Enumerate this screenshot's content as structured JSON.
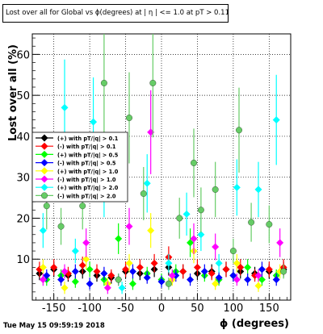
{
  "title": "Lost over all for Global vs ϕ(degrees) at | η | <= 1.0 at pT > 0.11",
  "timestamp": "Tue May 15 09:59:19 2018",
  "chart_data": {
    "type": "scatter",
    "xlabel": "ϕ (degrees)",
    "ylabel": "Lost over all (%)",
    "xlim": [
      -180,
      180
    ],
    "ylim": [
      0,
      65
    ],
    "x_ticks": [
      -150,
      -100,
      -50,
      0,
      50,
      100,
      150
    ],
    "y_ticks": [
      10,
      20,
      30,
      40,
      50,
      60
    ],
    "grid": true,
    "legend_position": "middle-left",
    "series": [
      {
        "name": "(+) with pT/|q| > 0.1",
        "color": "#000000",
        "marker": "diamond",
        "x": [
          -170,
          -150,
          -130,
          -110,
          -90,
          -70,
          -50,
          -30,
          -10,
          10,
          30,
          50,
          70,
          90,
          110,
          130,
          150,
          170
        ],
        "y": [
          6.5,
          7.5,
          6.0,
          7.0,
          6.0,
          5.5,
          7.0,
          6.5,
          7.5,
          8.0,
          7.0,
          6.5,
          7.0,
          7.5,
          7.0,
          6.5,
          7.0,
          7.5
        ]
      },
      {
        "name": "(-) with pT/|q| > 0.1",
        "color": "#ff0000",
        "marker": "diamond",
        "x": [
          -170,
          -150,
          -130,
          -110,
          -90,
          -70,
          -50,
          -30,
          -10,
          10,
          30,
          50,
          70,
          90,
          110,
          130,
          150,
          170
        ],
        "y": [
          7.5,
          8.0,
          6.5,
          8.5,
          7.0,
          6.0,
          7.5,
          8.0,
          9.0,
          10.5,
          7.0,
          8.0,
          6.5,
          7.5,
          8.0,
          6.0,
          7.5,
          8.0
        ]
      },
      {
        "name": "(+) with pT/|q| > 0.5",
        "color": "#00ff00",
        "marker": "diamond",
        "x": [
          -160,
          -140,
          -120,
          -100,
          -80,
          -60,
          -40,
          -20,
          0,
          20,
          40,
          60,
          80,
          100,
          120,
          140,
          160
        ],
        "y": [
          5.0,
          6.0,
          4.5,
          7.5,
          5.0,
          15.0,
          4.0,
          6.5,
          5.0,
          7.0,
          14.0,
          6.0,
          5.0,
          6.0,
          8.0,
          5.0,
          6.0
        ]
      },
      {
        "name": "(-) with pT/|q| > 0.5",
        "color": "#0000ff",
        "marker": "diamond",
        "x": [
          -160,
          -140,
          -120,
          -100,
          -80,
          -60,
          -40,
          -20,
          0,
          20,
          40,
          60,
          80,
          100,
          120,
          140,
          160
        ],
        "y": [
          6.0,
          5.0,
          7.0,
          4.0,
          6.5,
          5.0,
          7.0,
          5.5,
          4.5,
          6.0,
          5.0,
          7.0,
          5.5,
          6.0,
          5.0,
          7.5,
          5.0
        ]
      },
      {
        "name": "(+) with pT/|q| > 1.0",
        "color": "#ffff00",
        "marker": "diamond",
        "x": [
          -165,
          -135,
          -105,
          -75,
          -45,
          -15,
          15,
          45,
          75,
          105,
          135,
          165
        ],
        "y": [
          8.0,
          3.0,
          10.0,
          4.0,
          9.0,
          17.0,
          5.0,
          12.0,
          4.0,
          9.0,
          3.5,
          7.0
        ]
      },
      {
        "name": "(-) with pT/|q| > 1.0",
        "color": "#ff00ff",
        "marker": "diamond",
        "x": [
          -165,
          -135,
          -105,
          -75,
          -45,
          -15,
          15,
          45,
          75,
          105,
          135,
          165
        ],
        "y": [
          5.0,
          7.0,
          14.0,
          3.0,
          18.0,
          41.0,
          6.0,
          15.0,
          13.0,
          5.0,
          6.0,
          14.0
        ]
      },
      {
        "name": "(+) with pT/|q| > 2.0",
        "color": "#00ffff",
        "marker": "diamond",
        "x": [
          -165,
          -135,
          -120,
          -95,
          -80,
          -55,
          -20,
          10,
          35,
          55,
          80,
          105,
          135,
          160
        ],
        "y": [
          17.0,
          47.0,
          12.0,
          43.5,
          27.0,
          3.0,
          28.5,
          9.0,
          21.0,
          16.0,
          9.0,
          27.5,
          27.0,
          44.0
        ]
      },
      {
        "name": "(-) with pT/|q| > 2.0",
        "color": "#66cc66",
        "marker": "circle",
        "x": [
          -160,
          -140,
          -110,
          -80,
          -60,
          -45,
          -25,
          -12,
          10,
          25,
          45,
          55,
          75,
          100,
          108,
          125,
          150,
          170
        ],
        "y": [
          23.0,
          18.0,
          23.0,
          53.0,
          5.0,
          44.5,
          26.0,
          53.0,
          4.0,
          20.0,
          33.5,
          22.0,
          27.0,
          12.0,
          41.5,
          19.0,
          18.5,
          7.0
        ]
      }
    ]
  }
}
